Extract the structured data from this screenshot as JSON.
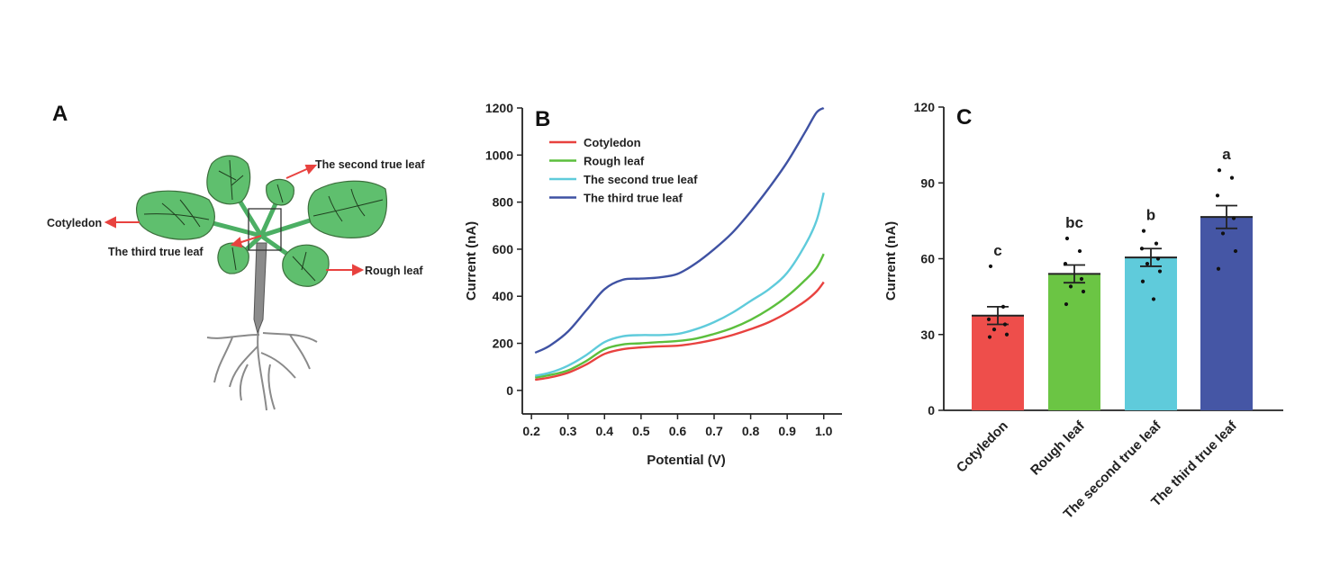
{
  "panel_a": {
    "letter": "A",
    "labels": {
      "second": "The second true leaf",
      "cotyledon": "Cotyledon",
      "third": "The third true leaf",
      "rough": "Rough leaf"
    }
  },
  "colors": {
    "red": "#e8423f",
    "green": "#5cbf3d",
    "cyan": "#5fcbdb",
    "blue": "#3f52a3",
    "leaf": "#5fbf6e"
  },
  "chart_data": [
    {
      "type": "line",
      "panel": "B",
      "title": "",
      "xlabel": "Potential (V)",
      "ylabel": "Current (nA)",
      "xlim": [
        0.175,
        1.05
      ],
      "ylim": [
        -100,
        1200
      ],
      "xticks": [
        "0.2",
        "0.3",
        "0.4",
        "0.5",
        "0.6",
        "0.7",
        "0.8",
        "0.9",
        "1.0"
      ],
      "yticks": [
        "0",
        "200",
        "400",
        "600",
        "800",
        "1000",
        "1200"
      ],
      "x": [
        0.21,
        0.25,
        0.3,
        0.35,
        0.4,
        0.45,
        0.5,
        0.55,
        0.6,
        0.65,
        0.7,
        0.75,
        0.8,
        0.85,
        0.9,
        0.95,
        0.98,
        1.0
      ],
      "series": [
        {
          "name": "Cotyledon",
          "color": "#e8423f",
          "values": [
            45,
            55,
            75,
            110,
            155,
            175,
            183,
            187,
            190,
            200,
            215,
            235,
            260,
            290,
            330,
            380,
            420,
            460
          ]
        },
        {
          "name": "Rough leaf",
          "color": "#5cbf3d",
          "values": [
            55,
            65,
            85,
            125,
            175,
            195,
            200,
            205,
            210,
            220,
            240,
            265,
            300,
            345,
            400,
            470,
            520,
            580
          ]
        },
        {
          "name": "The second true leaf",
          "color": "#5fcbdb",
          "values": [
            62,
            75,
            105,
            150,
            205,
            230,
            235,
            235,
            240,
            260,
            290,
            330,
            380,
            430,
            500,
            620,
            720,
            840
          ]
        },
        {
          "name": "The third true leaf",
          "color": "#3f52a3",
          "values": [
            160,
            190,
            250,
            340,
            430,
            470,
            475,
            480,
            495,
            540,
            600,
            670,
            760,
            860,
            970,
            1100,
            1180,
            1200
          ]
        }
      ],
      "legend": "top-left"
    },
    {
      "type": "bar",
      "panel": "C",
      "title": "",
      "xlabel": "",
      "ylabel": "Current (nA)",
      "ylim": [
        0,
        120
      ],
      "yticks": [
        "0",
        "30",
        "60",
        "90",
        "120"
      ],
      "categories": [
        "Cotyledon",
        "Rough leaf",
        "The second true leaf",
        "The third true leaf"
      ],
      "values": [
        37.5,
        54,
        60.5,
        76.5
      ],
      "errors": [
        3.5,
        3.5,
        3.5,
        4.5
      ],
      "letters": [
        "c",
        "bc",
        "b",
        "a"
      ],
      "colors": [
        "#ee4e4b",
        "#6bc544",
        "#5fcbdb",
        "#4556a5"
      ],
      "points": [
        [
          57,
          41,
          36,
          34,
          32,
          30,
          29
        ],
        [
          68,
          63,
          58,
          52,
          49,
          47,
          42
        ],
        [
          71,
          66,
          64,
          60,
          58,
          55,
          51,
          44
        ],
        [
          95,
          92,
          85,
          76,
          70,
          63,
          56
        ]
      ]
    }
  ]
}
